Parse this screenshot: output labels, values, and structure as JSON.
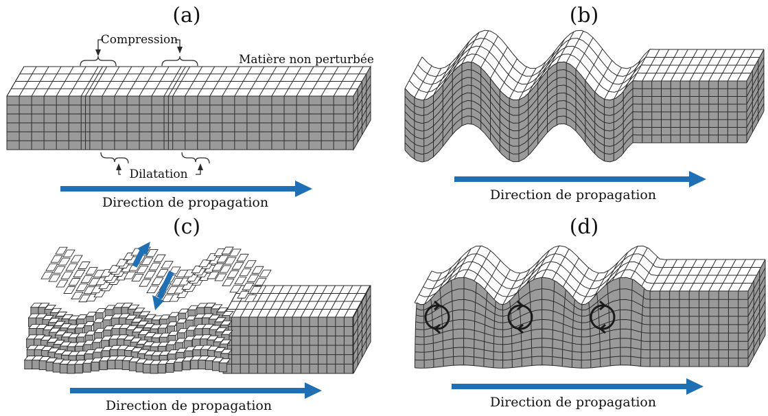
{
  "panels": {
    "a": {
      "label": "(a)",
      "compression": "Compression",
      "dilatation": "Dilatation",
      "undisturbed": "Matière non perturbée",
      "caption": "Direction de propagation"
    },
    "b": {
      "label": "(b)",
      "caption": "Direction de propagation"
    },
    "c": {
      "label": "(c)",
      "caption": "Direction de propagation"
    },
    "d": {
      "label": "(d)",
      "caption": "Direction de propagation"
    }
  },
  "colors": {
    "arrow": "#1f6fb5",
    "block_front": "#9a9a9a",
    "block_top": "#ffffff",
    "line": "#2a2a2a"
  }
}
